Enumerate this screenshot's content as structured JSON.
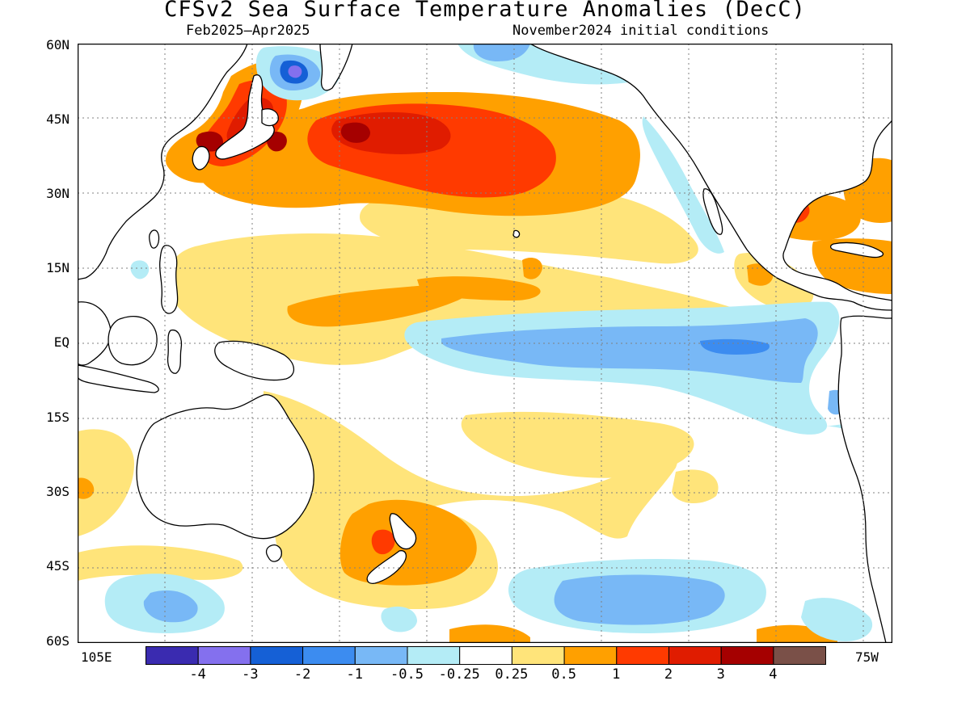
{
  "title": "CFSv2 Sea Surface Temperature Anomalies (DecC)",
  "subtitle_left": "Feb2025–Apr2025",
  "subtitle_right": "November2024 initial conditions",
  "lat_labels": [
    "60N",
    "45N",
    "30N",
    "15N",
    "EQ",
    "15S",
    "30S",
    "45S",
    "60S"
  ],
  "lon_labels": {
    "west_edge": "105E",
    "east_edge": "75W"
  },
  "colorbar": {
    "colors": [
      "#3a2bb0",
      "#8470ee",
      "#1560d6",
      "#3c8cf0",
      "#78b8f6",
      "#b4ecf6",
      "#ffffff",
      "#ffe47a",
      "#ffa000",
      "#ff3a00",
      "#e01c00",
      "#a50000",
      "#7a5048"
    ],
    "labels": [
      "-4",
      "-3",
      "-2",
      "-1",
      "-0.5",
      "-0.25",
      "0.25",
      "0.5",
      "1",
      "2",
      "3",
      "4"
    ]
  },
  "colors": {
    "land": "#ffffff",
    "coast": "#000000",
    "frame": "#000000"
  }
}
